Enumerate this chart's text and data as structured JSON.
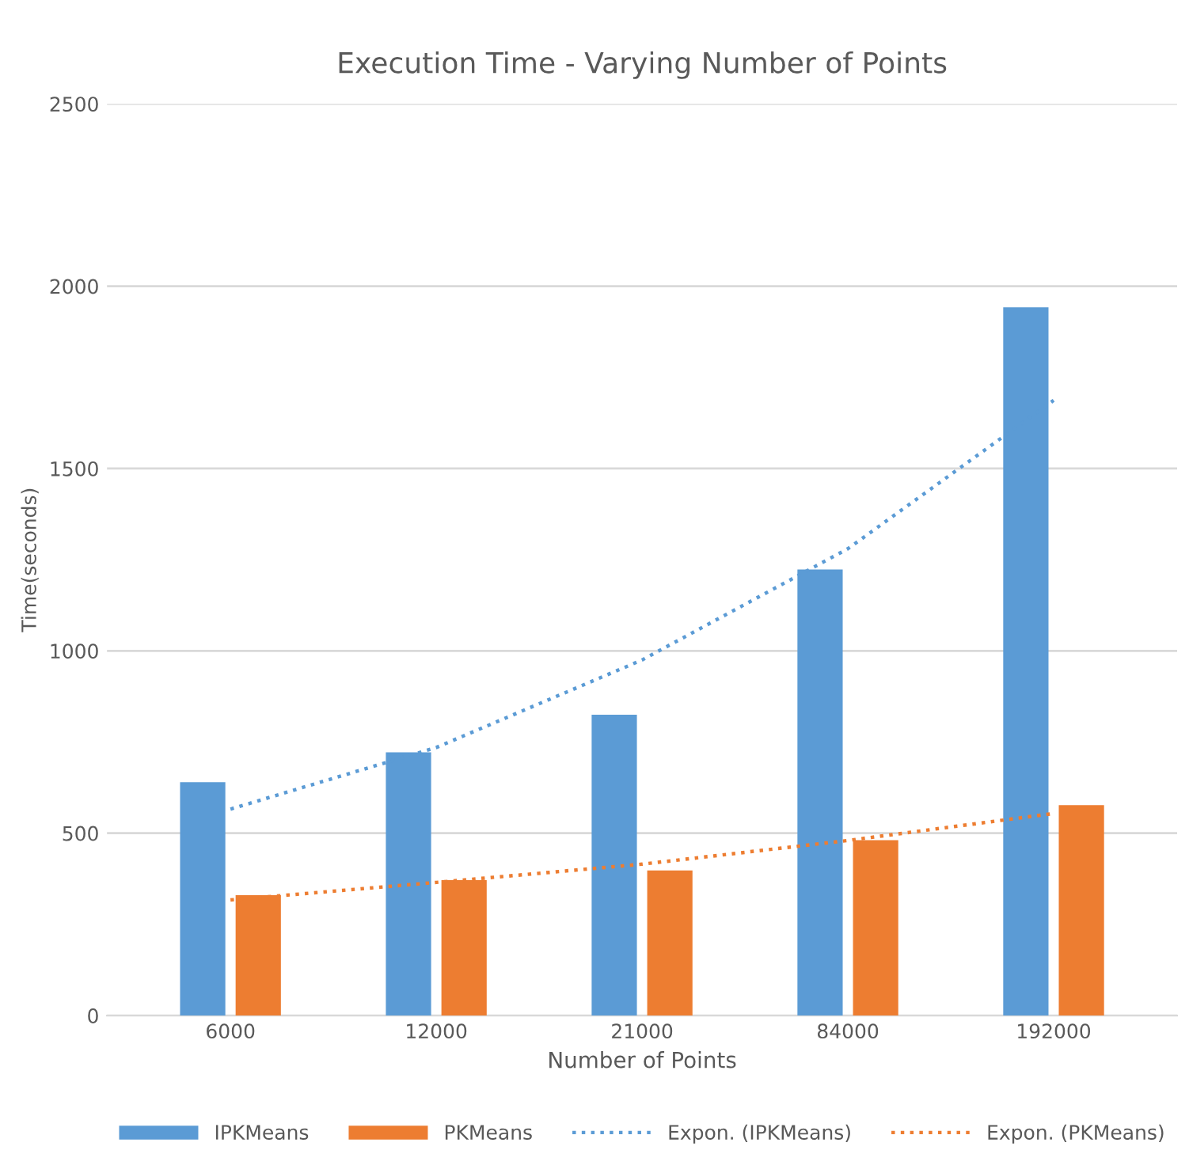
{
  "chart_data": {
    "type": "bar",
    "title": "Execution Time - Varying Number of Points",
    "xlabel": "Number of Points",
    "ylabel": "Time(seconds)",
    "categories": [
      "6000",
      "12000",
      "21000",
      "84000",
      "192000"
    ],
    "series": [
      {
        "name": "IPKMeans",
        "color": "#5b9bd5",
        "values": [
          640,
          722,
          825,
          1223,
          1942
        ]
      },
      {
        "name": "PKMeans",
        "color": "#ed7d31",
        "values": [
          330,
          371,
          398,
          481,
          577
        ]
      },
      {
        "name": "Expon. (IPKMeans)",
        "type": "line",
        "color": "#5b9bd5",
        "line_style": "dotted",
        "values": [
          566,
          735,
          975,
          1280,
          1687
        ]
      },
      {
        "name": "Expon. (PKMeans)",
        "type": "line",
        "color": "#ed7d31",
        "line_style": "dotted",
        "values": [
          317,
          365,
          415,
          480,
          554
        ]
      }
    ],
    "ylim": [
      0,
      2500
    ],
    "yticks": [
      0,
      500,
      1000,
      1500,
      2000,
      2500
    ],
    "grid": "y",
    "legend": "bottom"
  }
}
